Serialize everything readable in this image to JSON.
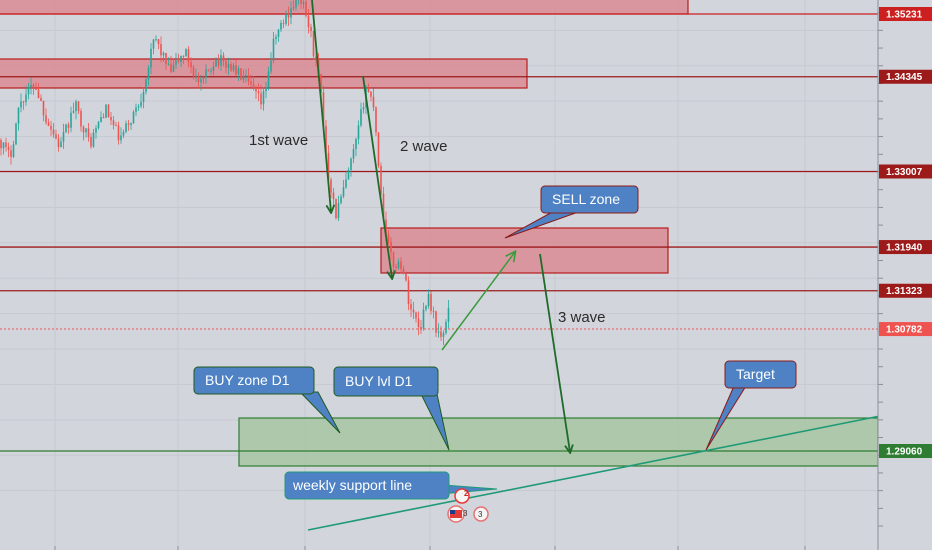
{
  "chart_data": {
    "type": "candlestick",
    "instrument_scale": "price",
    "ylim": [
      1.28,
      1.357
    ],
    "price_levels": [
      {
        "label": "1.35231",
        "value": 1.35231,
        "color": "#cc1f1f"
      },
      {
        "label": "1.34345",
        "value": 1.34345,
        "color": "#9c1a1a"
      },
      {
        "label": "1.33007",
        "value": 1.33007,
        "color": "#9c1a1a"
      },
      {
        "label": "1.31940",
        "value": 1.3194,
        "color": "#9c1a1a"
      },
      {
        "label": "1.31323",
        "value": 1.31323,
        "color": "#9c1a1a"
      },
      {
        "label": "1.30782",
        "value": 1.30782,
        "color": "#ef5350"
      },
      {
        "label": "1.29060",
        "value": 1.2906,
        "color": "#2e7d32"
      }
    ],
    "annotations": {
      "wave1": "1st wave",
      "wave2": "2 wave",
      "wave3": "3 wave",
      "sell_zone": "SELL zone",
      "buy_zone": "BUY zone D1",
      "buy_level": "BUY lvl D1",
      "target": "Target",
      "support_line": "weekly support line"
    },
    "event_badges": [
      "2",
      "3",
      "3"
    ],
    "grid": true
  },
  "colors": {
    "background": "#d3d5dc",
    "bull": "#26a69a",
    "bear": "#ef5350",
    "resistance_zone": "#d98b93",
    "support_zone": "#a7c6a3",
    "callout": "#4e82c4",
    "arrow_dark": "#1f6b2a",
    "arrow_light": "#3a9a3e",
    "support_line": "#1f9a77"
  }
}
